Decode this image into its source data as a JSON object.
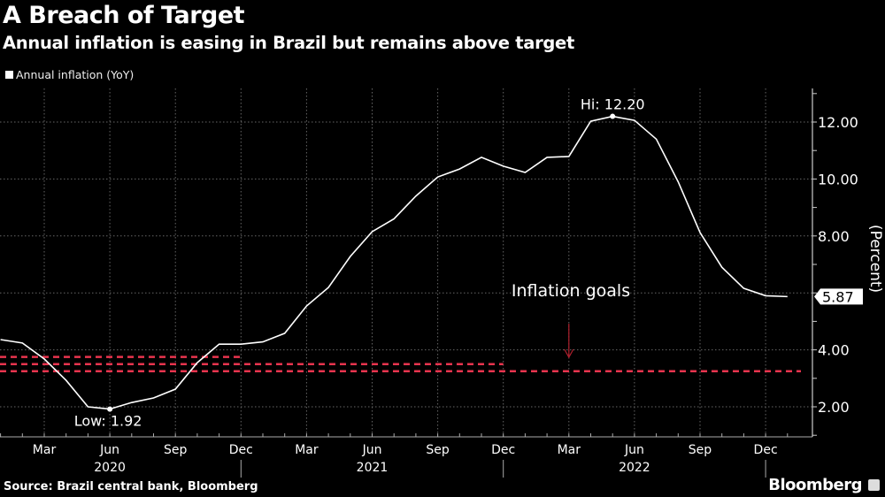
{
  "title": "A Breach of Target",
  "subtitle": "Annual inflation is easing in Brazil but remains above target",
  "legend": {
    "label": "Annual inflation (YoY)"
  },
  "source": "Source: Brazil central bank, Bloomberg",
  "brand": "Bloomberg",
  "chart_data": {
    "type": "line",
    "title": "A Breach of Target",
    "ylabel": "(Percent)",
    "ylim": [
      0.95,
      13.2
    ],
    "yticks": [
      "2.00",
      "4.00",
      "8.00",
      "10.00",
      "12.00"
    ],
    "ytick_values": [
      2,
      4,
      8,
      10,
      12
    ],
    "grid": true,
    "legend_placement": "top-left",
    "x_start": "2020-01",
    "x_ticks": [
      {
        "month": "2020-03",
        "label": "Mar"
      },
      {
        "month": "2020-06",
        "label": "Jun"
      },
      {
        "month": "2020-09",
        "label": "Sep"
      },
      {
        "month": "2020-12",
        "label": "Dec"
      },
      {
        "month": "2021-03",
        "label": "Mar"
      },
      {
        "month": "2021-06",
        "label": "Jun"
      },
      {
        "month": "2021-09",
        "label": "Sep"
      },
      {
        "month": "2021-12",
        "label": "Dec"
      },
      {
        "month": "2022-03",
        "label": "Mar"
      },
      {
        "month": "2022-06",
        "label": "Jun"
      },
      {
        "month": "2022-09",
        "label": "Sep"
      },
      {
        "month": "2022-12",
        "label": "Dec"
      }
    ],
    "year_labels": [
      {
        "month": "2020-06",
        "label": "2020"
      },
      {
        "month": "2021-06",
        "label": "2021"
      },
      {
        "month": "2022-06",
        "label": "2022"
      }
    ],
    "series": [
      {
        "name": "Annual inflation (YoY)",
        "color": "#ffffff",
        "x": [
          "2020-01",
          "2020-02",
          "2020-03",
          "2020-04",
          "2020-05",
          "2020-06",
          "2020-07",
          "2020-08",
          "2020-09",
          "2020-10",
          "2020-11",
          "2020-12",
          "2021-01",
          "2021-02",
          "2021-03",
          "2021-04",
          "2021-05",
          "2021-06",
          "2021-07",
          "2021-08",
          "2021-09",
          "2021-10",
          "2021-11",
          "2021-12",
          "2022-01",
          "2022-02",
          "2022-03",
          "2022-04",
          "2022-05",
          "2022-06",
          "2022-07",
          "2022-08",
          "2022-09",
          "2022-10",
          "2022-11",
          "2022-12",
          "2023-01"
        ],
        "values": [
          4.36,
          4.24,
          3.68,
          2.93,
          2.0,
          1.92,
          2.15,
          2.31,
          2.62,
          3.55,
          4.2,
          4.2,
          4.28,
          4.58,
          5.54,
          6.19,
          7.28,
          8.15,
          8.6,
          9.4,
          10.07,
          10.35,
          10.76,
          10.45,
          10.23,
          10.76,
          10.79,
          12.03,
          12.2,
          12.06,
          11.4,
          9.9,
          8.12,
          6.9,
          6.16,
          5.9,
          5.87
        ]
      }
    ],
    "goal_lines": [
      {
        "value": 3.75,
        "from": "2020-01",
        "to": "2020-12",
        "color": "#e8344e"
      },
      {
        "value": 3.5,
        "from": "2020-01",
        "to": "2021-12",
        "color": "#e8344e"
      },
      {
        "value": 3.25,
        "from": "2020-01",
        "to": "2023-01",
        "color": "#e8344e"
      }
    ],
    "annotations": {
      "high": {
        "label": "Hi: 12.20",
        "month": "2022-05",
        "value": 12.2
      },
      "low": {
        "label": "Low: 1.92",
        "month": "2020-06",
        "value": 1.92
      },
      "last": {
        "label": "5.87",
        "value": 5.87
      },
      "goals": {
        "label": "Inflation goals",
        "arrow_month": "2022-03",
        "arrow_color": "#b0202e"
      }
    }
  }
}
